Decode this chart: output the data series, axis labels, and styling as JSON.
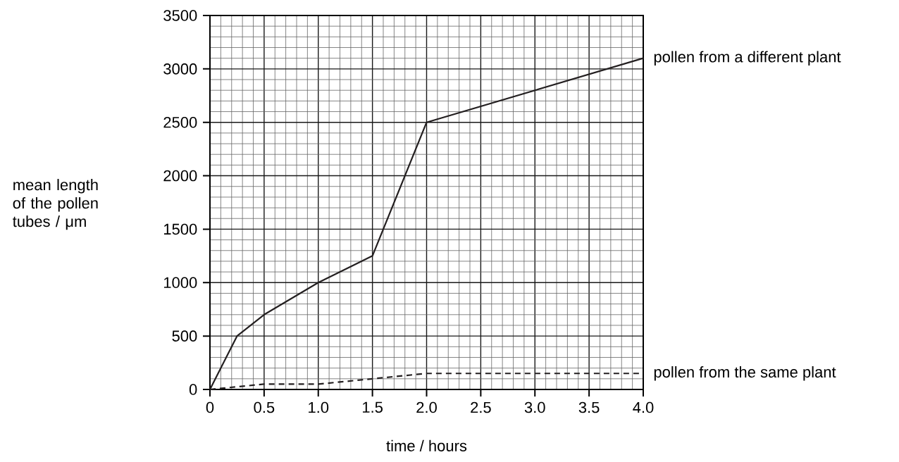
{
  "chart_data": {
    "type": "line",
    "xlabel": "time / hours",
    "ylabel": "mean length of the pollen tubes / μm",
    "xlim": [
      0,
      4
    ],
    "ylim": [
      0,
      3500
    ],
    "xticks": [
      0,
      0.5,
      {
        "value": 1,
        "label": "1.0"
      },
      1.5,
      {
        "value": 2,
        "label": "2.0"
      },
      2.5,
      {
        "value": 3,
        "label": "3.0"
      },
      3.5,
      {
        "value": 4,
        "label": "4.0"
      }
    ],
    "yticks": [
      0,
      500,
      1000,
      1500,
      2000,
      2500,
      3000,
      3500
    ],
    "grid": true,
    "legend": false,
    "series": [
      {
        "name": "pollen from a different plant",
        "color": "#231f20",
        "line_style": "solid",
        "x": [
          0,
          0.25,
          0.5,
          1.0,
          1.5,
          2.0,
          4.0
        ],
        "values": [
          0,
          500,
          700,
          1000,
          1250,
          2500,
          3100
        ]
      },
      {
        "name": "pollen from the same plant",
        "color": "#231f20",
        "line_style": "dashed",
        "x": [
          0,
          0.25,
          0.5,
          1.0,
          1.5,
          2.0,
          4.0
        ],
        "values": [
          0,
          25,
          50,
          50,
          100,
          150,
          150
        ]
      }
    ]
  }
}
